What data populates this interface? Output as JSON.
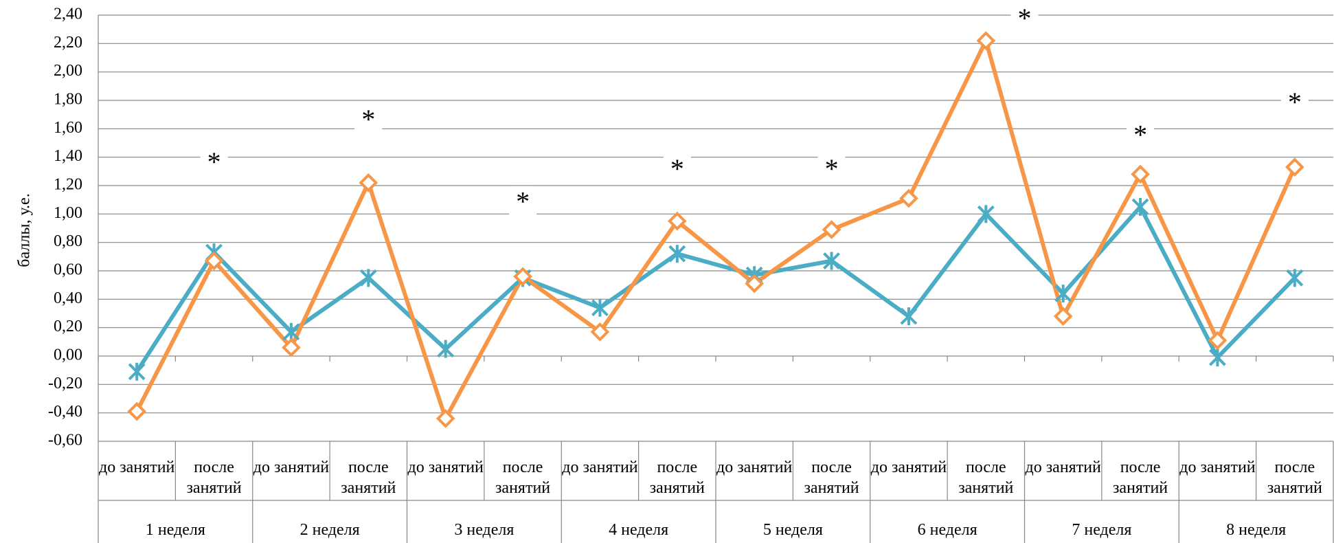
{
  "chart_data": {
    "type": "line",
    "y_label": "баллы, у.е.",
    "categories": [
      "до занятий",
      "после занятий",
      "до занятий",
      "после занятий",
      "до занятий",
      "после занятий",
      "до занятий",
      "после занятий",
      "до занятий",
      "после занятий",
      "до занятий",
      "после занятий",
      "до занятий",
      "после занятий",
      "до занятий",
      "после занятий"
    ],
    "groups": [
      "1 неделя",
      "2 неделя",
      "3 неделя",
      "4 неделя",
      "5 неделя",
      "6 неделя",
      "7 неделя",
      "8 неделя"
    ],
    "series": [
      {
        "color": "#4bacc6",
        "marker": "asterisk",
        "values": [
          -0.11,
          0.73,
          0.17,
          0.55,
          0.05,
          0.55,
          0.34,
          0.72,
          0.57,
          0.67,
          0.28,
          1.0,
          0.44,
          1.05,
          -0.01,
          0.55
        ]
      },
      {
        "color": "#f79646",
        "marker": "diamond",
        "values": [
          -0.39,
          0.67,
          0.06,
          1.22,
          -0.44,
          0.56,
          0.17,
          0.95,
          0.51,
          0.89,
          1.11,
          2.22,
          0.28,
          1.28,
          0.11,
          1.33
        ]
      }
    ],
    "annotations": [
      {
        "text": "*",
        "x": 1,
        "y": 1.37
      },
      {
        "text": "*",
        "x": 3,
        "y": 1.67
      },
      {
        "text": "*",
        "x": 5,
        "y": 1.09
      },
      {
        "text": "*",
        "x": 7,
        "y": 1.32
      },
      {
        "text": "*",
        "x": 9,
        "y": 1.32
      },
      {
        "text": "*",
        "x": 11.5,
        "y": 2.38
      },
      {
        "text": "*",
        "x": 13,
        "y": 1.56
      },
      {
        "text": "*",
        "x": 15,
        "y": 1.79
      }
    ],
    "ylim": [
      -0.6,
      2.4
    ],
    "yticks": [
      {
        "value": -0.6,
        "label": "-0,60"
      },
      {
        "value": -0.4,
        "label": "-0,40"
      },
      {
        "value": -0.2,
        "label": "-0,20"
      },
      {
        "value": 0,
        "label": "0,00"
      },
      {
        "value": 0.2,
        "label": "0,20"
      },
      {
        "value": 0.4,
        "label": "0,40"
      },
      {
        "value": 0.6,
        "label": "0,60"
      },
      {
        "value": 0.8,
        "label": "0,80"
      },
      {
        "value": 1.0,
        "label": "1,00"
      },
      {
        "value": 1.2,
        "label": "1,20"
      },
      {
        "value": 1.4,
        "label": "1,40"
      },
      {
        "value": 1.6,
        "label": "1,60"
      },
      {
        "value": 1.8,
        "label": "1,80"
      },
      {
        "value": 2.0,
        "label": "2,00"
      },
      {
        "value": 2.2,
        "label": "2,20"
      },
      {
        "value": 2.4,
        "label": "2,40"
      }
    ],
    "grid": true
  }
}
